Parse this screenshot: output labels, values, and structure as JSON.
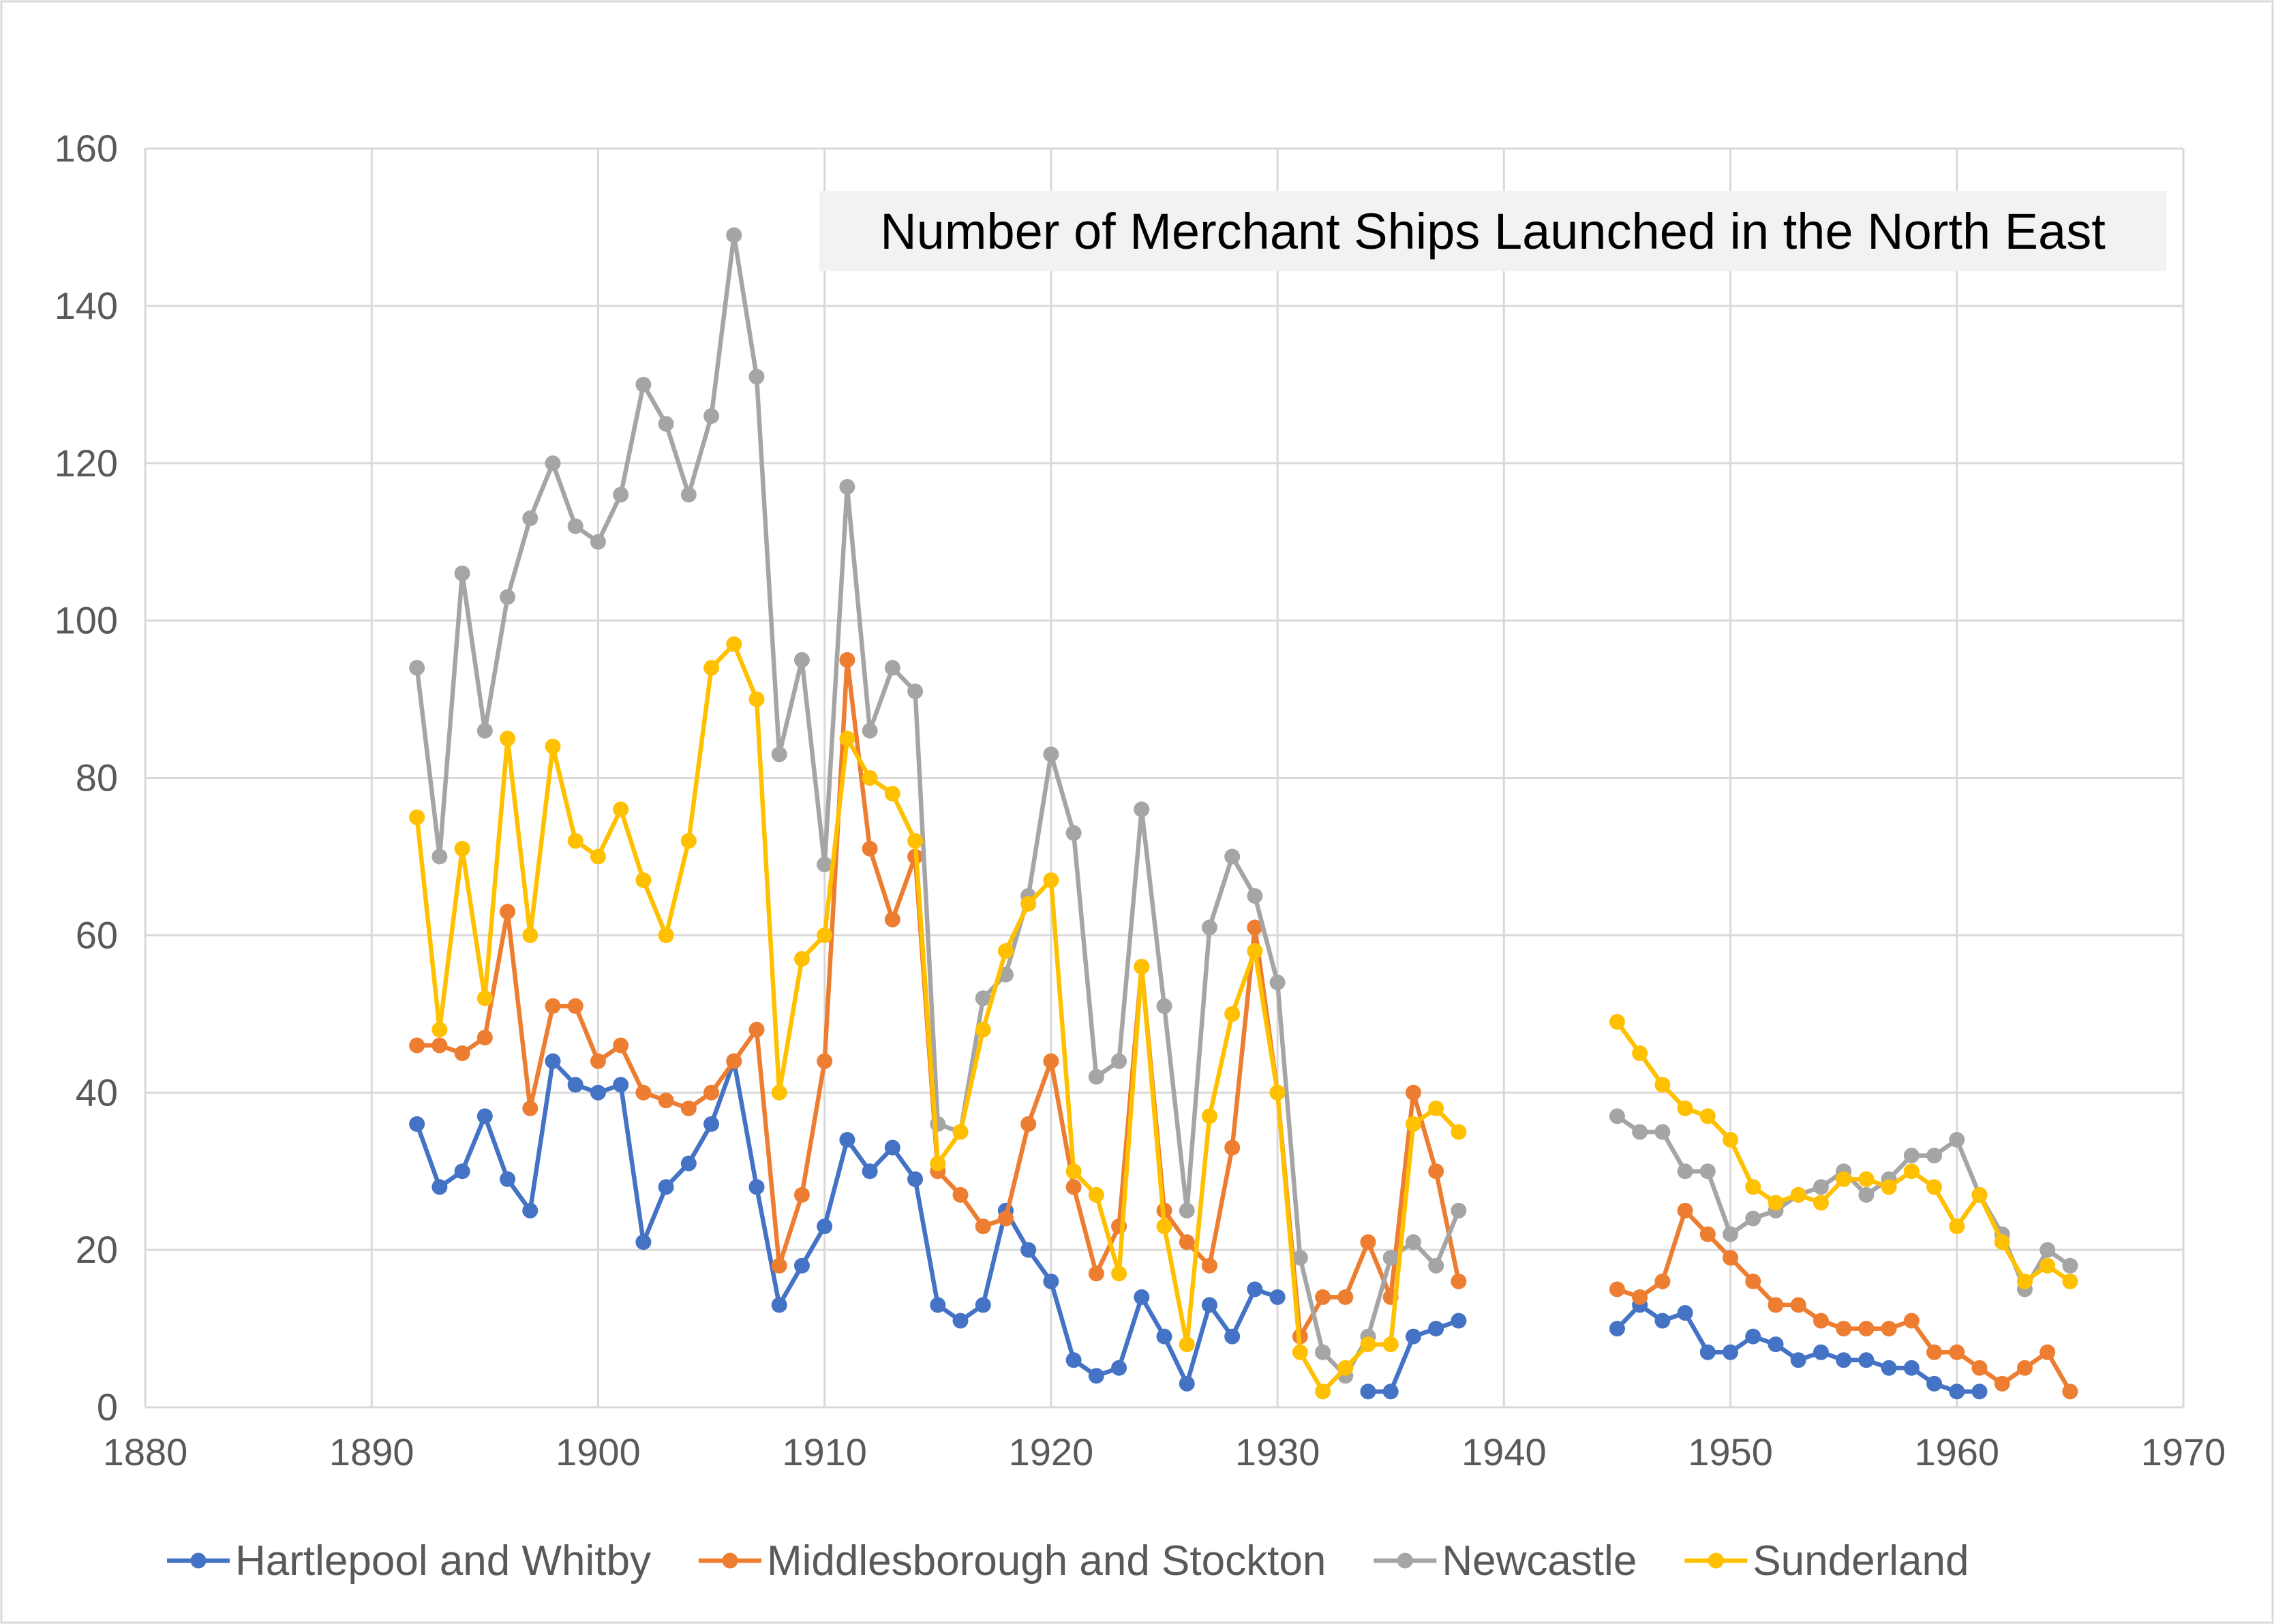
{
  "chart_data": {
    "type": "line",
    "title": "Number of Merchant Ships Launched in the North East",
    "xlabel": "",
    "ylabel": "",
    "xlim": [
      1880,
      1970
    ],
    "ylim": [
      0,
      160
    ],
    "x_ticks": [
      1880,
      1890,
      1900,
      1910,
      1920,
      1930,
      1940,
      1950,
      1960,
      1970
    ],
    "y_ticks": [
      0,
      20,
      40,
      60,
      80,
      100,
      120,
      140,
      160
    ],
    "grid": true,
    "legend_position": "bottom",
    "series": [
      {
        "name": "Hartlepool and Whitby",
        "color": "#4472C4",
        "segments": [
          {
            "x": [
              1892,
              1893,
              1894,
              1895,
              1896,
              1897,
              1898,
              1899,
              1900,
              1901,
              1902,
              1903,
              1904,
              1905,
              1906,
              1907,
              1908,
              1909,
              1910,
              1911,
              1912,
              1913,
              1914,
              1915,
              1916,
              1917,
              1918,
              1919,
              1920,
              1921,
              1922,
              1923,
              1924,
              1925,
              1926,
              1927,
              1928,
              1929,
              1930
            ],
            "y": [
              36,
              28,
              30,
              37,
              29,
              25,
              44,
              41,
              40,
              41,
              21,
              28,
              31,
              36,
              44,
              28,
              13,
              18,
              23,
              34,
              30,
              33,
              29,
              13,
              11,
              13,
              25,
              20,
              16,
              6,
              4,
              5,
              14,
              9,
              3,
              13,
              9,
              15,
              14
            ]
          },
          {
            "x": [
              1934,
              1935,
              1936,
              1937,
              1938
            ],
            "y": [
              2,
              2,
              9,
              10,
              11
            ]
          },
          {
            "x": [
              1945,
              1946,
              1947,
              1948,
              1949,
              1950,
              1951,
              1952,
              1953,
              1954,
              1955,
              1956,
              1957,
              1958,
              1959,
              1960,
              1961
            ],
            "y": [
              10,
              13,
              11,
              12,
              7,
              7,
              9,
              8,
              6,
              7,
              6,
              6,
              5,
              5,
              3,
              2,
              2
            ]
          }
        ]
      },
      {
        "name": "Middlesborough and Stockton",
        "color": "#ED7D31",
        "segments": [
          {
            "x": [
              1892,
              1893,
              1894,
              1895,
              1896,
              1897,
              1898,
              1899,
              1900,
              1901,
              1902,
              1903,
              1904,
              1905,
              1906,
              1907,
              1908,
              1909,
              1910,
              1911,
              1912,
              1913,
              1914,
              1915,
              1916,
              1917,
              1918,
              1919,
              1920,
              1921,
              1922,
              1923,
              1924,
              1925,
              1926,
              1927,
              1928,
              1929,
              1930,
              1931,
              1932,
              1933,
              1934,
              1935,
              1936,
              1937,
              1938
            ],
            "y": [
              46,
              46,
              45,
              47,
              63,
              38,
              51,
              51,
              44,
              46,
              40,
              39,
              38,
              40,
              44,
              48,
              18,
              27,
              44,
              95,
              71,
              62,
              70,
              30,
              27,
              23,
              24,
              36,
              44,
              28,
              17,
              23,
              56,
              25,
              21,
              18,
              33,
              61,
              40,
              9,
              14,
              14,
              21,
              14,
              40,
              30,
              16
            ]
          },
          {
            "x": [
              1945,
              1946,
              1947,
              1948,
              1949,
              1950,
              1951,
              1952,
              1953,
              1954,
              1955,
              1956,
              1957,
              1958,
              1959,
              1960,
              1961,
              1962,
              1963,
              1964,
              1965
            ],
            "y": [
              15,
              14,
              16,
              25,
              22,
              19,
              16,
              13,
              13,
              11,
              10,
              10,
              10,
              11,
              7,
              7,
              5,
              3,
              5,
              7,
              2
            ]
          }
        ]
      },
      {
        "name": "Newcastle",
        "color": "#A5A5A5",
        "segments": [
          {
            "x": [
              1892,
              1893,
              1894,
              1895,
              1896,
              1897,
              1898,
              1899,
              1900,
              1901,
              1902,
              1903,
              1904,
              1905,
              1906,
              1907,
              1908,
              1909,
              1910,
              1911,
              1912,
              1913,
              1914,
              1915,
              1916,
              1917,
              1918,
              1919,
              1920,
              1921,
              1922,
              1923,
              1924,
              1925,
              1926,
              1927,
              1928,
              1929,
              1930,
              1931,
              1932,
              1933,
              1934,
              1935,
              1936,
              1937,
              1938
            ],
            "y": [
              94,
              70,
              106,
              86,
              103,
              113,
              120,
              112,
              110,
              116,
              130,
              125,
              116,
              126,
              149,
              131,
              83,
              95,
              69,
              117,
              86,
              94,
              91,
              36,
              35,
              52,
              55,
              65,
              83,
              73,
              42,
              44,
              76,
              51,
              25,
              61,
              70,
              65,
              54,
              19,
              7,
              4,
              9,
              19,
              21,
              18,
              25
            ]
          },
          {
            "x": [
              1945,
              1946,
              1947,
              1948,
              1949,
              1950,
              1951,
              1952,
              1953,
              1954,
              1955,
              1956,
              1957,
              1958,
              1959,
              1960,
              1961,
              1962,
              1963,
              1964,
              1965
            ],
            "y": [
              37,
              35,
              35,
              30,
              30,
              22,
              24,
              25,
              27,
              28,
              30,
              27,
              29,
              32,
              32,
              34,
              27,
              22,
              15,
              20,
              18
            ]
          }
        ]
      },
      {
        "name": "Sunderland",
        "color": "#FFC000",
        "segments": [
          {
            "x": [
              1892,
              1893,
              1894,
              1895,
              1896,
              1897,
              1898,
              1899,
              1900,
              1901,
              1902,
              1903,
              1904,
              1905,
              1906,
              1907,
              1908,
              1909,
              1910,
              1911,
              1912,
              1913,
              1914,
              1915,
              1916,
              1917,
              1918,
              1919,
              1920,
              1921,
              1922,
              1923,
              1924,
              1925,
              1926,
              1927,
              1928,
              1929,
              1930,
              1931,
              1932,
              1933,
              1934,
              1935,
              1936,
              1937,
              1938
            ],
            "y": [
              75,
              48,
              71,
              52,
              85,
              60,
              84,
              72,
              70,
              76,
              67,
              60,
              72,
              94,
              97,
              90,
              40,
              57,
              60,
              85,
              80,
              78,
              72,
              31,
              35,
              48,
              58,
              64,
              67,
              30,
              27,
              17,
              56,
              23,
              8,
              37,
              50,
              58,
              40,
              7,
              2,
              5,
              8,
              8,
              36,
              38,
              35
            ]
          },
          {
            "x": [
              1945,
              1946,
              1947,
              1948,
              1949,
              1950,
              1951,
              1952,
              1953,
              1954,
              1955,
              1956,
              1957,
              1958,
              1959,
              1960,
              1961,
              1962,
              1963,
              1964,
              1965
            ],
            "y": [
              49,
              45,
              41,
              38,
              37,
              34,
              28,
              26,
              27,
              26,
              29,
              29,
              28,
              30,
              28,
              23,
              27,
              21,
              16,
              18,
              16
            ]
          }
        ]
      }
    ]
  }
}
